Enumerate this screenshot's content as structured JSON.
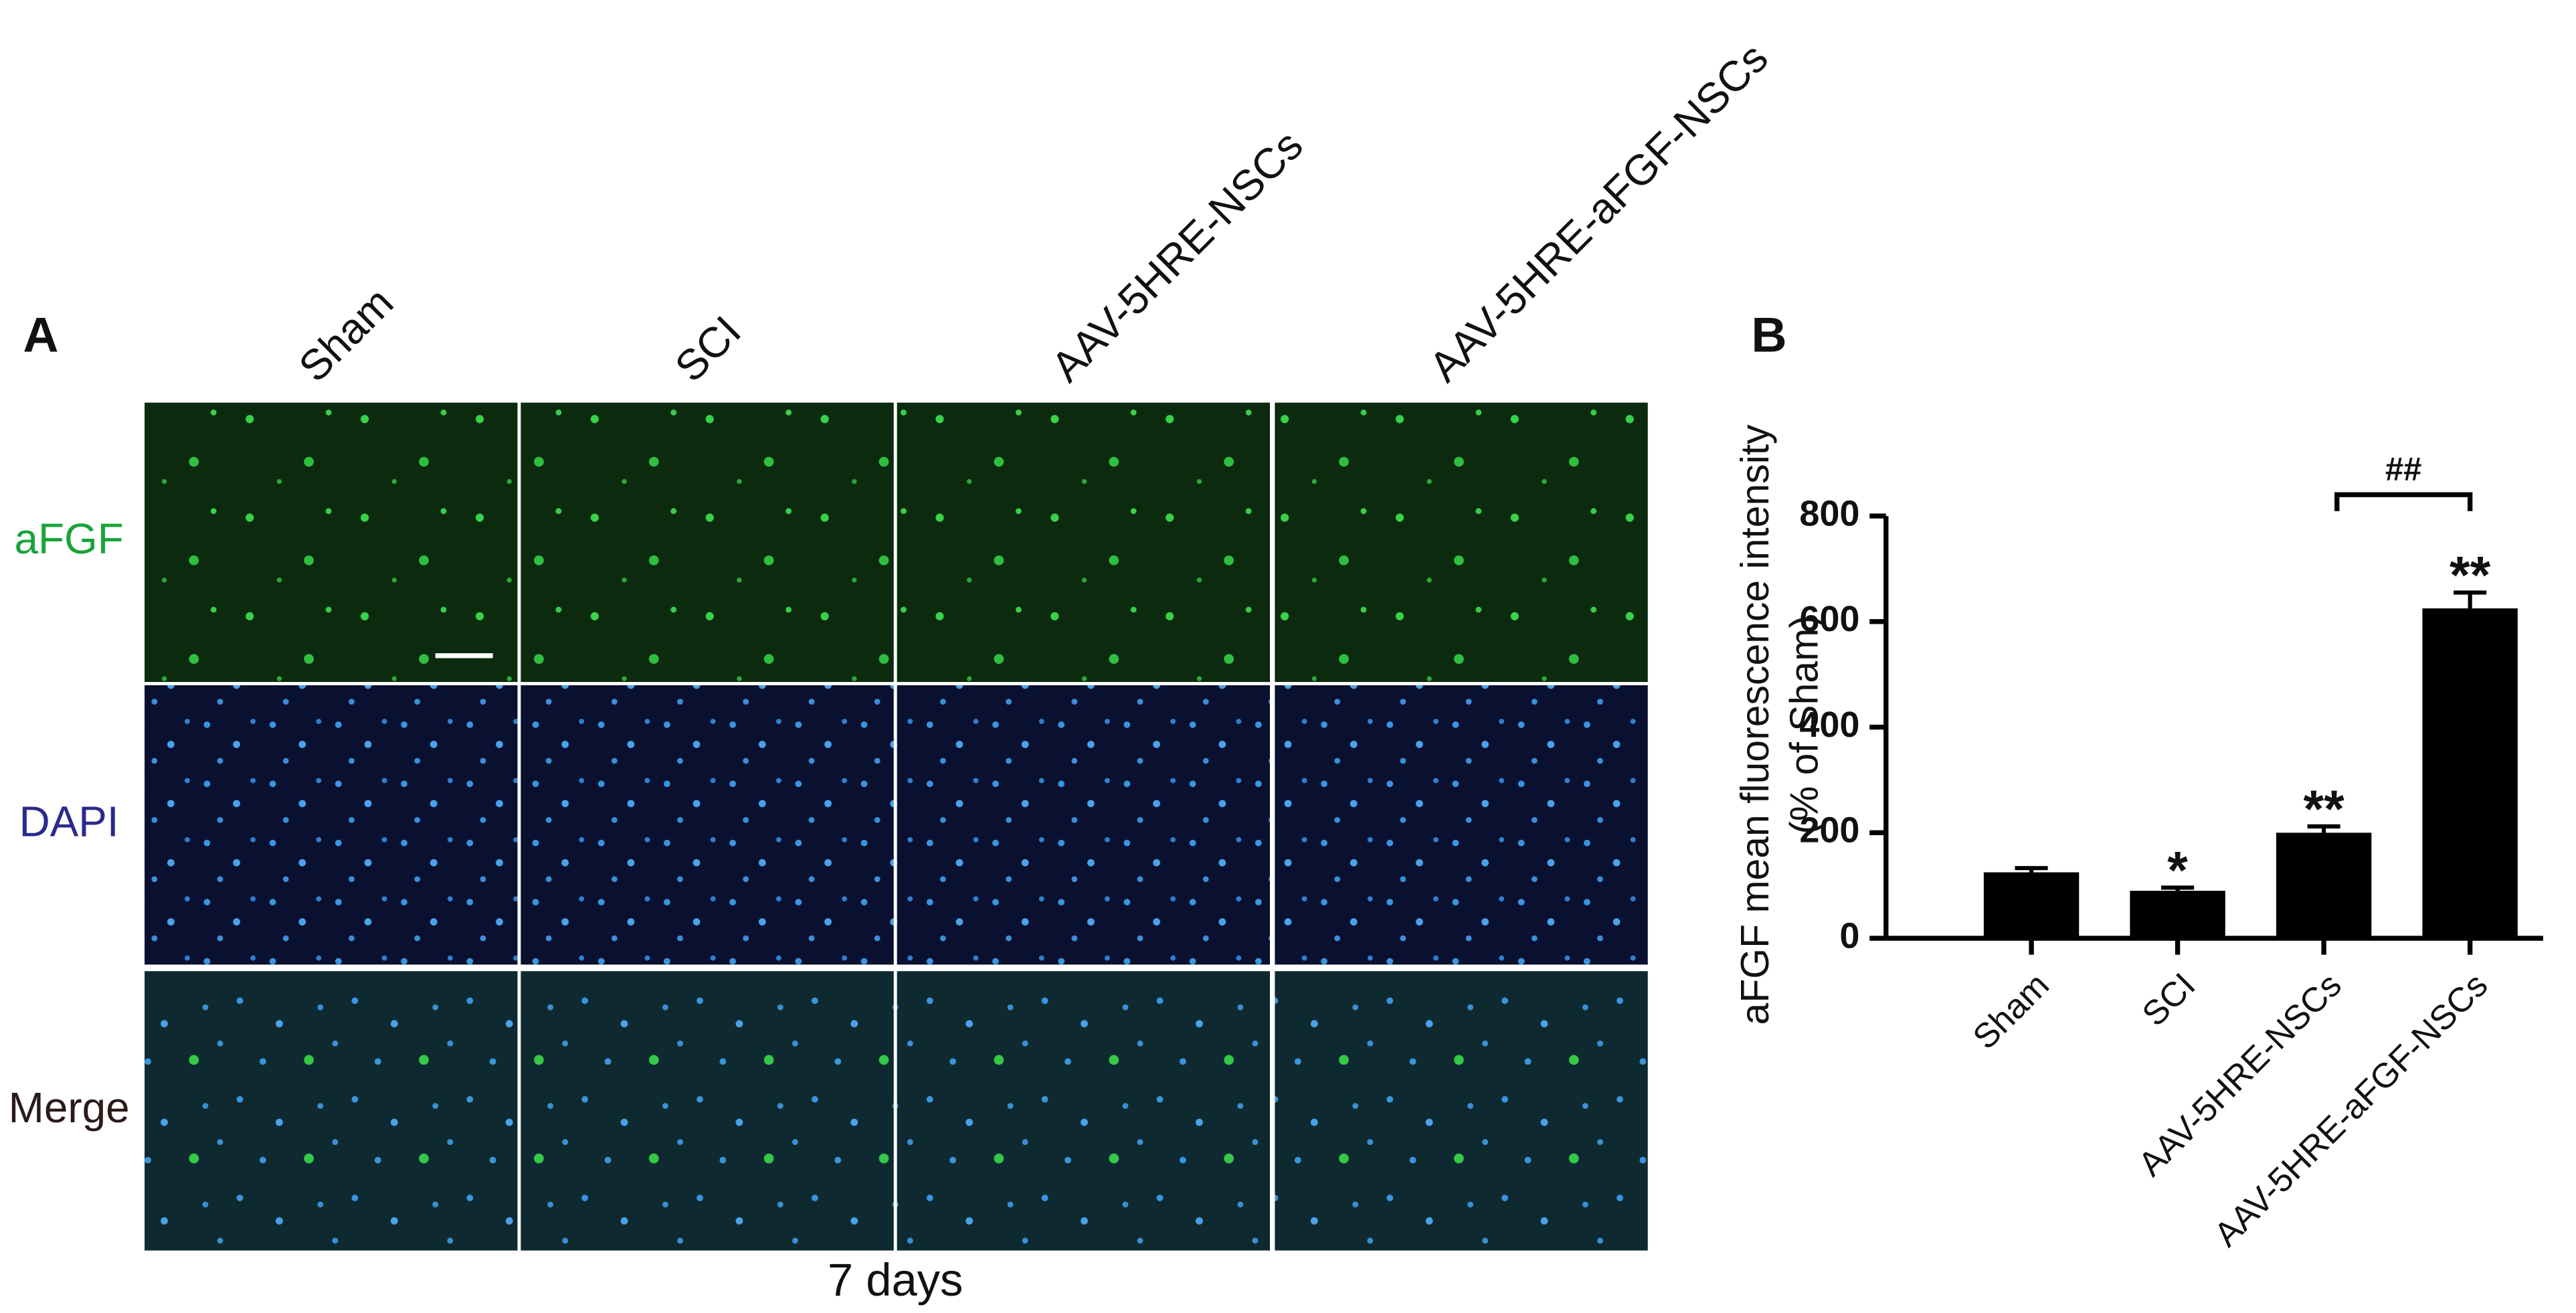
{
  "panel_a": {
    "label": "A",
    "columns": [
      "Sham",
      "SCI",
      "AAV-5HRE-NSCs",
      "AAV-5HRE-aFGF-NSCs"
    ],
    "rows": [
      "aFGF",
      "DAPI",
      "Merge"
    ],
    "caption": "7 days"
  },
  "chart_data": {
    "type": "bar",
    "panel_label": "B",
    "y_label": [
      "aFGF mean fluorescence intensity",
      "(% of Sham)"
    ],
    "categories": [
      "Sham",
      "SCI",
      "AAV-5HRE-NSCs",
      "AAV-5HRE-aFGF-NSCs"
    ],
    "values": [
      125,
      90,
      200,
      625
    ],
    "errors": [
      8,
      6,
      12,
      30
    ],
    "significance": [
      null,
      "*",
      "**",
      "**"
    ],
    "comparison": {
      "label": "##"
    },
    "color": "#000000",
    "ylim": [
      0,
      800
    ],
    "yticks": [
      0,
      200,
      400,
      600,
      800
    ]
  }
}
